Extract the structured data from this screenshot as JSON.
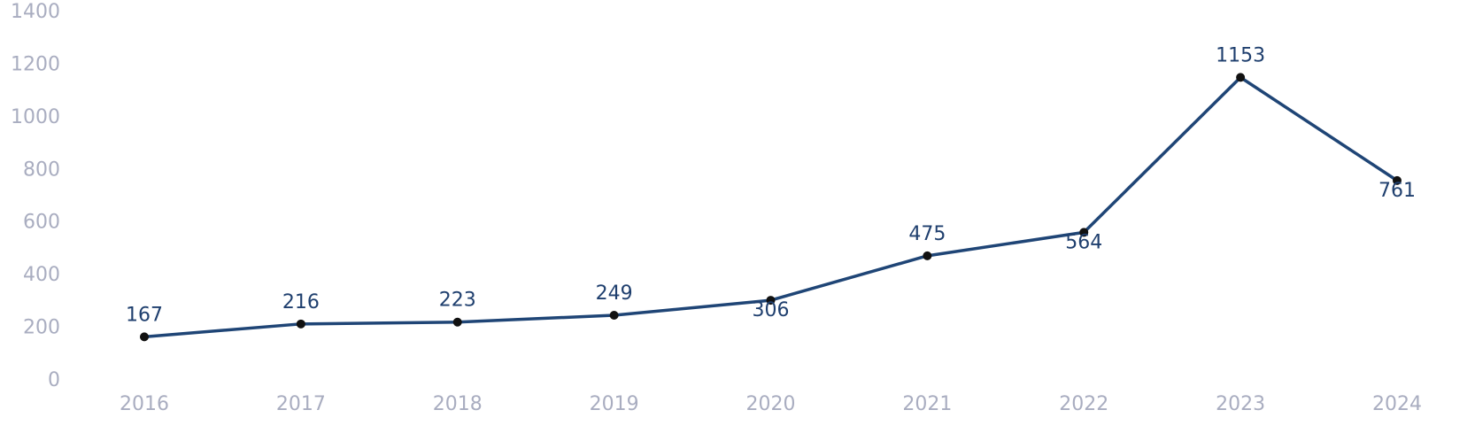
{
  "chart_data": {
    "type": "line",
    "categories": [
      "2016",
      "2017",
      "2018",
      "2019",
      "2020",
      "2021",
      "2022",
      "2023",
      "2024"
    ],
    "series": [
      {
        "color": "#1f4576",
        "values": [
          167,
          216,
          223,
          249,
          306,
          475,
          564,
          1153,
          761
        ]
      }
    ],
    "marker_color": "#111111",
    "ylim": [
      0,
      1400
    ],
    "yticks": [
      0,
      200,
      400,
      600,
      800,
      1000,
      1200,
      1400
    ],
    "grid": false
  }
}
